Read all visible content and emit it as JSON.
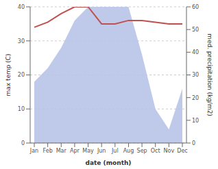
{
  "chart_data": {
    "type": "line",
    "categories": [
      "Jan",
      "Feb",
      "Mar",
      "Apr",
      "May",
      "Jun",
      "Jul",
      "Aug",
      "Sep",
      "Oct",
      "Nov",
      "Dec"
    ],
    "series": [
      {
        "type": "area",
        "color": "#b8c4e8",
        "values": [
          18,
          22,
          28,
          36,
          40,
          40,
          40,
          40,
          26,
          10,
          4,
          16
        ]
      },
      {
        "type": "line",
        "color": "#c0504d",
        "values": [
          34,
          35.5,
          38,
          40,
          40,
          35,
          35,
          36,
          36,
          35.5,
          35,
          35
        ]
      }
    ],
    "xlabel": "date (month)",
    "ylabel": "max temp (C)",
    "y2label": "med. precipitation (kg/m2)",
    "ylim": [
      0,
      40
    ],
    "yticks": [
      0,
      10,
      20,
      30,
      40
    ],
    "y2lim": [
      0,
      60
    ],
    "y2ticks": [
      0,
      10,
      20,
      30,
      40,
      50,
      60
    ],
    "grid": true
  }
}
